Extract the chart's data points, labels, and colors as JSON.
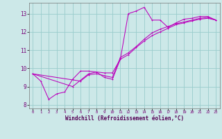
{
  "title": "",
  "xlabel": "Windchill (Refroidissement éolien,°C)",
  "ylabel": "",
  "bg_color": "#cce8e8",
  "grid_color": "#99cccc",
  "line_color": "#bb00bb",
  "xlim": [
    -0.5,
    23.5
  ],
  "ylim": [
    7.8,
    13.6
  ],
  "xticks": [
    0,
    1,
    2,
    3,
    4,
    5,
    6,
    7,
    8,
    9,
    10,
    11,
    12,
    13,
    14,
    15,
    16,
    17,
    18,
    19,
    20,
    21,
    22,
    23
  ],
  "yticks": [
    8,
    9,
    10,
    11,
    12,
    13
  ],
  "series": [
    [
      0,
      9.7
    ],
    [
      1,
      9.3
    ],
    [
      2,
      8.3
    ],
    [
      3,
      8.6
    ],
    [
      4,
      8.7
    ],
    [
      5,
      9.4
    ],
    [
      6,
      9.85
    ],
    [
      7,
      9.85
    ],
    [
      8,
      9.8
    ],
    [
      9,
      9.5
    ],
    [
      10,
      9.4
    ],
    [
      11,
      10.5
    ],
    [
      12,
      13.0
    ],
    [
      13,
      13.15
    ],
    [
      14,
      13.35
    ],
    [
      15,
      12.65
    ],
    [
      16,
      12.65
    ],
    [
      17,
      12.25
    ],
    [
      18,
      12.5
    ],
    [
      19,
      12.7
    ],
    [
      20,
      12.75
    ],
    [
      21,
      12.85
    ],
    [
      22,
      12.85
    ],
    [
      23,
      12.65
    ]
  ],
  "line2": [
    [
      0,
      9.7
    ],
    [
      5,
      9.0
    ],
    [
      7,
      9.7
    ],
    [
      8,
      9.8
    ],
    [
      9,
      9.75
    ],
    [
      10,
      9.75
    ],
    [
      11,
      10.5
    ],
    [
      12,
      10.75
    ],
    [
      13,
      11.15
    ],
    [
      14,
      11.5
    ],
    [
      15,
      11.8
    ],
    [
      16,
      12.0
    ],
    [
      17,
      12.2
    ],
    [
      18,
      12.4
    ],
    [
      19,
      12.5
    ],
    [
      20,
      12.6
    ],
    [
      21,
      12.7
    ],
    [
      22,
      12.75
    ],
    [
      23,
      12.65
    ]
  ],
  "line3": [
    [
      0,
      9.7
    ],
    [
      6,
      9.3
    ],
    [
      7,
      9.65
    ],
    [
      8,
      9.7
    ],
    [
      9,
      9.6
    ],
    [
      10,
      9.5
    ],
    [
      11,
      10.6
    ],
    [
      12,
      10.85
    ],
    [
      13,
      11.2
    ],
    [
      14,
      11.6
    ],
    [
      15,
      11.95
    ],
    [
      16,
      12.15
    ],
    [
      17,
      12.3
    ],
    [
      18,
      12.45
    ],
    [
      19,
      12.55
    ],
    [
      20,
      12.65
    ],
    [
      21,
      12.75
    ],
    [
      22,
      12.8
    ],
    [
      23,
      12.65
    ]
  ]
}
